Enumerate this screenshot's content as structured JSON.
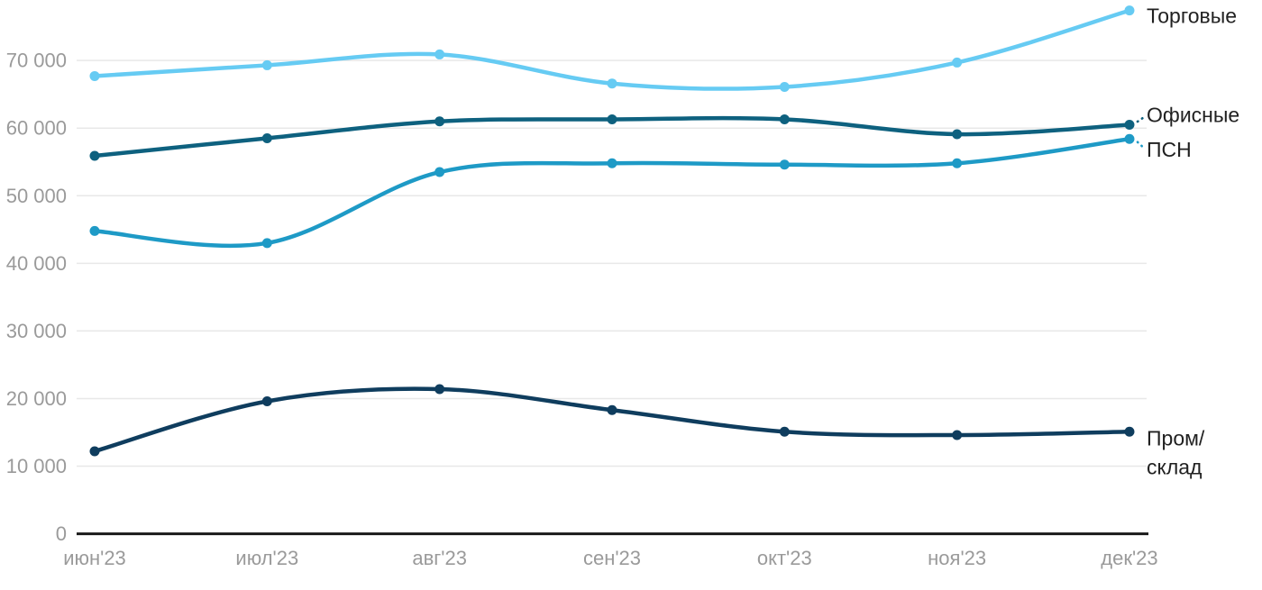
{
  "chart_data": {
    "type": "line",
    "title": "",
    "x_categories": [
      "июн'23",
      "июл'23",
      "авг'23",
      "сен'23",
      "окт'23",
      "ноя'23",
      "дек'23"
    ],
    "series": [
      {
        "name": "Торговые",
        "label_lines": [
          "Торговые"
        ],
        "color": "#66CBF3",
        "values": [
          67700,
          69300,
          70900,
          66600,
          66100,
          69700,
          77400
        ]
      },
      {
        "name": "Офисные",
        "label_lines": [
          "Офисные"
        ],
        "color": "#0E617F",
        "values": [
          55900,
          58500,
          61000,
          61300,
          61300,
          59100,
          60500
        ]
      },
      {
        "name": "ПСН",
        "label_lines": [
          "ПСН"
        ],
        "color": "#1E9AC6",
        "values": [
          44800,
          43000,
          53500,
          54800,
          54600,
          54800,
          58400
        ]
      },
      {
        "name": "Пром/склад",
        "label_lines": [
          "Пром/",
          "склад"
        ],
        "color": "#0F3D5E",
        "values": [
          12200,
          19600,
          21400,
          18300,
          15100,
          14600,
          15100
        ]
      }
    ],
    "yticks": [
      0,
      10000,
      20000,
      30000,
      40000,
      50000,
      60000,
      70000
    ],
    "ytick_labels": [
      "0",
      "10 000",
      "20 000",
      "30 000",
      "40 000",
      "50 000",
      "60 000",
      "70 000"
    ],
    "ylim": [
      0,
      78900
    ],
    "xlabel": "",
    "ylabel": "",
    "grid": "horizontal",
    "legend_position": "right-end-of-lines"
  },
  "style": {
    "background": "#FFFFFF",
    "grid_color": "#E8E8E8",
    "axis_color": "#1A1A1A",
    "tick_label_color": "#9A9A9A",
    "series_label_color": "#212121"
  }
}
